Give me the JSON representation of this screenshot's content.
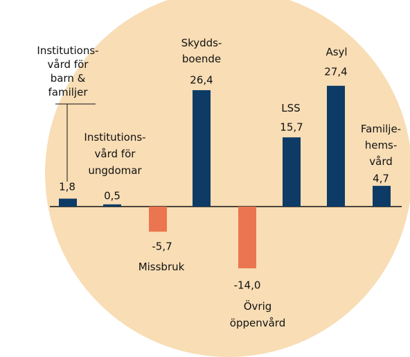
{
  "chart_data": {
    "type": "bar",
    "categories": [
      "Institutions-\nvård för\nbarn &\nfamiljer",
      "Institutions-\nvård för\nungdomar",
      "Missbruk",
      "Skydds-\nboende",
      "Övrig\nöppenvård",
      "LSS",
      "Asyl",
      "Familje-\nhems-\nvård"
    ],
    "values": [
      1.8,
      0.5,
      -5.7,
      26.4,
      -14.0,
      15.7,
      27.4,
      4.7
    ],
    "value_labels": [
      "1,8",
      "0,5",
      "-5,7",
      "26,4",
      "-14,0",
      "15,7",
      "27,4",
      "4,7"
    ],
    "colors": {
      "positive": "#0d3b66",
      "negative": "#ea7550"
    }
  }
}
